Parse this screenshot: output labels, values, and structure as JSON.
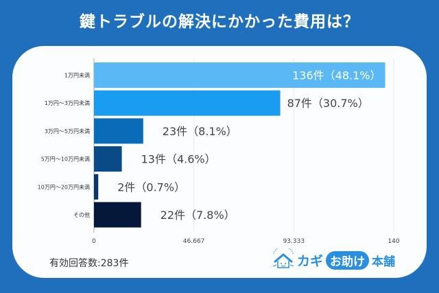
{
  "title": "鍵トラブルの解決にかかった費用は？",
  "chart_data": {
    "type": "bar",
    "orientation": "horizontal",
    "title": "鍵トラブルの解決にかかった費用は？",
    "categories": [
      "1万円未満",
      "1万円〜3万円未満",
      "3万円〜5万円未満",
      "5万円〜10万円未満",
      "10万円〜20万円未満",
      "その他"
    ],
    "values": [
      136,
      87,
      23,
      13,
      2,
      22
    ],
    "percentages": [
      48.1,
      30.7,
      8.1,
      4.6,
      0.7,
      7.8
    ],
    "data_labels": [
      "136件（48.1%）",
      "87件（30.7%）",
      "23件（8.1%）",
      "13件（4.6%）",
      "2件（0.7%）",
      "22件（7.8%）"
    ],
    "bar_colors": [
      "#5ab8f5",
      "#1a9cf0",
      "#0a6bb8",
      "#0a4a86",
      "#0a3566",
      "#06183a"
    ],
    "xlim": [
      0,
      140
    ],
    "xticks": [
      0,
      46.667,
      93.333,
      140
    ],
    "xtick_labels": [
      "0",
      "46.667",
      "93.333",
      "140"
    ],
    "xlabel": "",
    "ylabel": "",
    "grid": true,
    "legend": "none"
  },
  "footer": {
    "valid_responses": "有効回答数:283件"
  },
  "logo": {
    "part1": "カギ",
    "part2": "お助け",
    "part3": "本舗"
  },
  "colors": {
    "background": "#1f6fbd",
    "card": "#fbfdff",
    "brand": "#2a8fe0"
  }
}
